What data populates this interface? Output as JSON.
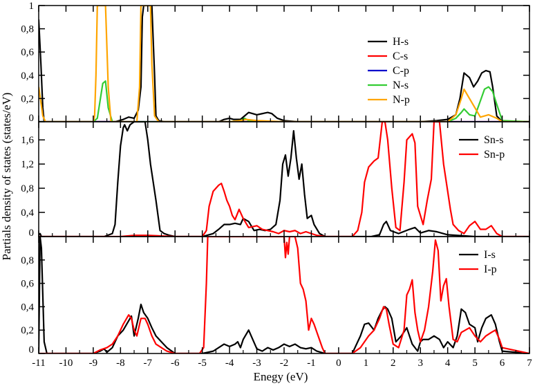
{
  "figure": {
    "ylabel": "Partials density of states (states/eV)",
    "xlabel": "Enegy (eV)"
  },
  "chart_data": [
    {
      "type": "line",
      "panel": "top",
      "xlim": [
        -11,
        7
      ],
      "ylim": [
        0,
        1
      ],
      "yticks": [
        "0",
        "0,2",
        "0,4",
        "0,6",
        "0,8",
        "1"
      ],
      "ytick_values": [
        0,
        0.2,
        0.4,
        0.6,
        0.8,
        1.0
      ],
      "legend_position": "top-right",
      "series": [
        {
          "name": "H-s",
          "color": "#000000",
          "x": [
            -11.0,
            -10.92,
            -10.85,
            -10.8,
            -10.5,
            -8.2,
            -7.9,
            -7.7,
            -7.5,
            -7.35,
            -7.25,
            -7.2,
            -7.15,
            -6.95,
            -6.85,
            -6.75,
            -6.7,
            -6.6,
            -6.4,
            -5.5,
            -4.4,
            -4.2,
            -4.0,
            -3.85,
            -3.6,
            -3.45,
            -3.3,
            -3.0,
            -2.8,
            -2.6,
            -2.45,
            -2.25,
            -2.0,
            -1.5,
            0.0,
            3.0,
            3.6,
            4.0,
            4.3,
            4.45,
            4.6,
            4.8,
            4.95,
            5.1,
            5.25,
            5.4,
            5.55,
            5.65,
            5.8,
            6.0,
            7.0
          ],
          "y": [
            0.88,
            0.5,
            0.12,
            0.0,
            0.0,
            0.0,
            0.02,
            0.04,
            0.03,
            0.1,
            0.3,
            0.9,
            1.0,
            1.0,
            1.0,
            0.4,
            0.05,
            0.01,
            0.0,
            0.0,
            0.0,
            0.02,
            0.03,
            0.02,
            0.02,
            0.05,
            0.08,
            0.06,
            0.07,
            0.08,
            0.07,
            0.03,
            0.01,
            0.0,
            0.0,
            0.0,
            0.01,
            0.02,
            0.06,
            0.2,
            0.42,
            0.38,
            0.3,
            0.35,
            0.42,
            0.44,
            0.43,
            0.3,
            0.05,
            0.0,
            0.0
          ]
        },
        {
          "name": "C-s",
          "color": "#ff0000",
          "x": [
            -11,
            7
          ],
          "y": [
            0,
            0
          ]
        },
        {
          "name": "C-p",
          "color": "#0000cc",
          "x": [
            -11,
            7
          ],
          "y": [
            0,
            0
          ]
        },
        {
          "name": "N-s",
          "color": "#33cc33",
          "x": [
            -11.0,
            -9.0,
            -8.85,
            -8.75,
            -8.65,
            -8.55,
            -8.45,
            -8.3,
            -8.0,
            -4.0,
            -3.6,
            -3.45,
            -3.3,
            -3.0,
            -2.0,
            4.0,
            4.3,
            4.5,
            4.6,
            4.8,
            5.0,
            5.2,
            5.35,
            5.5,
            5.65,
            5.8,
            6.0,
            7.0
          ],
          "y": [
            0.0,
            0.0,
            0.03,
            0.18,
            0.33,
            0.35,
            0.12,
            0.0,
            0.0,
            0.0,
            0.01,
            0.03,
            0.01,
            0.0,
            0.0,
            0.0,
            0.03,
            0.08,
            0.11,
            0.06,
            0.05,
            0.18,
            0.28,
            0.3,
            0.26,
            0.15,
            0.01,
            0.0
          ]
        },
        {
          "name": "N-p",
          "color": "#ffa500",
          "x": [
            -11.0,
            -10.95,
            -10.85,
            -10.75,
            -9.0,
            -8.95,
            -8.9,
            -8.85,
            -8.8,
            -8.6,
            -8.55,
            -8.45,
            -8.35,
            -7.4,
            -7.3,
            -7.25,
            -7.15,
            -6.95,
            -6.9,
            -6.85,
            -6.75,
            -6.6,
            -4.0,
            -3.6,
            -3.4,
            -3.0,
            -2.0,
            4.0,
            4.3,
            4.5,
            4.6,
            4.8,
            5.0,
            5.2,
            5.5,
            5.8,
            6.0,
            7.0
          ],
          "y": [
            0.3,
            0.22,
            0.05,
            0.0,
            0.0,
            0.05,
            0.4,
            1.0,
            1.0,
            1.0,
            1.0,
            0.3,
            0.0,
            0.0,
            0.3,
            1.0,
            1.0,
            1.0,
            1.0,
            0.5,
            0.05,
            0.0,
            0.0,
            0.01,
            0.02,
            0.01,
            0.0,
            0.0,
            0.06,
            0.2,
            0.28,
            0.2,
            0.12,
            0.04,
            0.06,
            0.03,
            0.0,
            0.0
          ]
        }
      ]
    },
    {
      "type": "line",
      "panel": "middle",
      "xlim": [
        -11,
        7
      ],
      "ylim": [
        0,
        1.9
      ],
      "yticks": [
        "0",
        "0,4",
        "0,8",
        "1,2",
        "1,6"
      ],
      "ytick_values": [
        0,
        0.4,
        0.8,
        1.2,
        1.6
      ],
      "legend_position": "top-right",
      "series": [
        {
          "name": "Sn-s",
          "color": "#000000",
          "x": [
            -11.0,
            -10.95,
            -10.9,
            -8.6,
            -8.3,
            -8.2,
            -8.1,
            -8.0,
            -7.9,
            -7.85,
            -7.75,
            -7.65,
            -7.5,
            -7.3,
            -7.2,
            -7.1,
            -7.0,
            -6.9,
            -6.8,
            -6.7,
            -6.55,
            -6.4,
            -6.2,
            -6.0,
            -5.0,
            -4.6,
            -4.4,
            -4.2,
            -4.0,
            -3.8,
            -3.6,
            -3.5,
            -3.3,
            -3.1,
            -2.9,
            -2.7,
            -2.5,
            -2.3,
            -2.15,
            -2.05,
            -1.95,
            -1.85,
            -1.75,
            -1.65,
            -1.55,
            -1.45,
            -1.35,
            -1.25,
            -1.15,
            -1.0,
            -0.9,
            -0.7,
            -0.5,
            0.5,
            1.2,
            1.5,
            1.65,
            1.75,
            1.9,
            2.2,
            2.6,
            2.8,
            3.0,
            3.3,
            3.6,
            4.0,
            5.0,
            7.0
          ],
          "y": [
            0.02,
            0.05,
            0.0,
            0.0,
            0.05,
            0.2,
            0.9,
            1.5,
            1.8,
            1.85,
            1.75,
            1.85,
            1.95,
            1.95,
            1.95,
            1.95,
            1.6,
            1.2,
            0.9,
            0.6,
            0.1,
            0.05,
            0.02,
            0.0,
            0.0,
            0.05,
            0.12,
            0.2,
            0.2,
            0.22,
            0.2,
            0.3,
            0.25,
            0.1,
            0.12,
            0.1,
            0.12,
            0.2,
            0.6,
            1.2,
            1.35,
            1.0,
            1.3,
            1.75,
            1.3,
            0.95,
            1.2,
            0.7,
            0.3,
            0.35,
            0.2,
            0.05,
            0.0,
            0.0,
            0.0,
            0.03,
            0.2,
            0.25,
            0.1,
            0.05,
            0.12,
            0.15,
            0.06,
            0.1,
            0.08,
            0.03,
            0.0,
            0.0
          ]
        },
        {
          "name": "Sn-p",
          "color": "#ff0000",
          "x": [
            -11.0,
            -8.0,
            -7.5,
            -7.0,
            -6.0,
            -5.0,
            -4.85,
            -4.75,
            -4.6,
            -4.5,
            -4.4,
            -4.3,
            -4.2,
            -4.1,
            -4.0,
            -3.9,
            -3.8,
            -3.65,
            -3.5,
            -3.3,
            -3.0,
            -2.8,
            -2.6,
            -2.4,
            -2.2,
            -2.0,
            -1.8,
            -1.6,
            -1.4,
            -1.2,
            -1.0,
            -0.8,
            -0.5,
            0.5,
            0.7,
            0.85,
            0.95,
            1.1,
            1.3,
            1.45,
            1.6,
            1.7,
            1.8,
            1.95,
            2.1,
            2.25,
            2.4,
            2.5,
            2.6,
            2.7,
            2.8,
            2.9,
            3.1,
            3.25,
            3.4,
            3.5,
            3.6,
            3.7,
            3.85,
            4.0,
            4.1,
            4.2,
            4.4,
            4.6,
            4.8,
            5.0,
            5.2,
            5.4,
            5.6,
            5.8,
            6.0,
            7.0
          ],
          "y": [
            0.0,
            0.0,
            0.02,
            0.02,
            0.0,
            0.0,
            0.1,
            0.5,
            0.75,
            0.8,
            0.85,
            0.88,
            0.75,
            0.6,
            0.5,
            0.35,
            0.28,
            0.45,
            0.3,
            0.15,
            0.18,
            0.12,
            0.1,
            0.08,
            0.05,
            0.1,
            0.08,
            0.1,
            0.05,
            0.08,
            0.05,
            0.02,
            0.0,
            0.0,
            0.1,
            0.4,
            0.9,
            1.15,
            1.25,
            1.3,
            1.95,
            2.0,
            1.6,
            0.8,
            0.15,
            0.1,
            0.9,
            1.6,
            1.65,
            1.7,
            1.55,
            0.5,
            0.2,
            0.6,
            0.95,
            1.95,
            1.95,
            1.95,
            1.2,
            0.75,
            0.45,
            0.2,
            0.1,
            0.05,
            0.18,
            0.25,
            0.12,
            0.12,
            0.18,
            0.05,
            0.0,
            0.0
          ]
        }
      ]
    },
    {
      "type": "line",
      "panel": "bottom",
      "xlim": [
        -11,
        7
      ],
      "ylim": [
        0,
        1
      ],
      "yticks": [
        "0",
        "0,2",
        "0,4",
        "0,6",
        "0,8"
      ],
      "ytick_values": [
        0,
        0.2,
        0.4,
        0.6,
        0.8
      ],
      "legend_position": "top-right",
      "series": [
        {
          "name": "I-s",
          "color": "#000000",
          "x": [
            -11.0,
            -10.95,
            -10.9,
            -10.8,
            -10.7,
            -10.5,
            -9.0,
            -8.75,
            -8.6,
            -8.5,
            -8.3,
            -8.1,
            -7.9,
            -7.7,
            -7.6,
            -7.5,
            -7.35,
            -7.25,
            -7.15,
            -7.0,
            -6.85,
            -6.7,
            -6.5,
            -6.3,
            -6.0,
            -5.0,
            -4.6,
            -4.4,
            -4.2,
            -4.0,
            -3.8,
            -3.7,
            -3.6,
            -3.5,
            -3.3,
            -3.0,
            -2.8,
            -2.6,
            -2.4,
            -2.2,
            -2.0,
            -1.8,
            -1.6,
            -1.4,
            -1.2,
            -1.0,
            -0.8,
            -0.5,
            0.5,
            0.8,
            0.95,
            1.1,
            1.3,
            1.45,
            1.6,
            1.7,
            1.8,
            1.95,
            2.1,
            2.3,
            2.5,
            2.7,
            2.9,
            3.0,
            3.1,
            3.3,
            3.5,
            3.7,
            3.85,
            4.0,
            4.2,
            4.35,
            4.5,
            4.65,
            4.8,
            5.0,
            5.1,
            5.25,
            5.4,
            5.6,
            5.75,
            5.9,
            6.0,
            7.0
          ],
          "y": [
            0.0,
            1.0,
            0.9,
            0.1,
            0.0,
            0.0,
            0.0,
            0.02,
            0.04,
            0.01,
            0.05,
            0.15,
            0.2,
            0.28,
            0.32,
            0.15,
            0.3,
            0.42,
            0.35,
            0.3,
            0.22,
            0.15,
            0.1,
            0.05,
            0.0,
            0.0,
            0.02,
            0.05,
            0.08,
            0.06,
            0.08,
            0.1,
            0.05,
            0.12,
            0.2,
            0.04,
            0.02,
            0.05,
            0.03,
            0.05,
            0.08,
            0.06,
            0.08,
            0.05,
            0.04,
            0.05,
            0.02,
            0.0,
            0.0,
            0.15,
            0.25,
            0.26,
            0.2,
            0.3,
            0.37,
            0.4,
            0.38,
            0.3,
            0.1,
            0.15,
            0.22,
            0.08,
            0.02,
            0.1,
            0.12,
            0.12,
            0.15,
            0.12,
            0.05,
            0.1,
            0.05,
            0.15,
            0.38,
            0.35,
            0.25,
            0.22,
            0.1,
            0.22,
            0.3,
            0.33,
            0.25,
            0.1,
            0.02,
            0.0
          ]
        },
        {
          "name": "I-p",
          "color": "#ff0000",
          "x": [
            -11.0,
            -9.0,
            -8.75,
            -8.5,
            -8.3,
            -8.1,
            -7.9,
            -7.7,
            -7.6,
            -7.5,
            -7.4,
            -7.25,
            -7.1,
            -7.0,
            -6.85,
            -6.7,
            -6.5,
            -6.3,
            -6.0,
            -5.1,
            -4.95,
            -4.85,
            -4.8,
            -4.7,
            -4.5,
            -4.3,
            -4.1,
            -3.9,
            -3.7,
            -3.5,
            -3.3,
            -3.1,
            -2.9,
            -2.7,
            -2.5,
            -2.3,
            -2.1,
            -2.0,
            -1.95,
            -1.9,
            -1.85,
            -1.8,
            -1.75,
            -1.7,
            -1.65,
            -1.6,
            -1.5,
            -1.4,
            -1.3,
            -1.2,
            -1.1,
            -1.0,
            -0.9,
            -0.75,
            -0.6,
            -0.5,
            0.5,
            0.8,
            1.1,
            1.3,
            1.5,
            1.65,
            1.75,
            1.85,
            2.0,
            2.2,
            2.4,
            2.5,
            2.6,
            2.7,
            2.8,
            2.9,
            3.0,
            3.15,
            3.3,
            3.45,
            3.55,
            3.65,
            3.75,
            3.85,
            3.95,
            4.05,
            4.2,
            4.35,
            4.5,
            4.65,
            4.8,
            5.0,
            5.2,
            5.4,
            5.6,
            5.75,
            5.9,
            6.0,
            7.0
          ],
          "y": [
            0.0,
            0.0,
            0.03,
            0.05,
            0.08,
            0.15,
            0.25,
            0.33,
            0.3,
            0.2,
            0.15,
            0.3,
            0.3,
            0.25,
            0.15,
            0.08,
            0.05,
            0.02,
            0.0,
            0.0,
            0.05,
            0.6,
            1.0,
            1.0,
            1.0,
            1.0,
            1.0,
            1.0,
            1.0,
            1.0,
            1.0,
            1.0,
            1.0,
            1.0,
            1.0,
            1.0,
            1.0,
            1.0,
            0.82,
            0.95,
            0.85,
            1.0,
            1.0,
            1.0,
            1.0,
            1.0,
            0.9,
            0.6,
            0.55,
            0.45,
            0.2,
            0.3,
            0.25,
            0.15,
            0.05,
            0.0,
            0.0,
            0.05,
            0.15,
            0.2,
            0.3,
            0.4,
            0.38,
            0.25,
            0.08,
            0.05,
            0.2,
            0.5,
            0.55,
            0.63,
            0.35,
            0.2,
            0.1,
            0.2,
            0.4,
            0.7,
            0.97,
            0.88,
            0.45,
            0.58,
            0.64,
            0.4,
            0.12,
            0.1,
            0.18,
            0.2,
            0.22,
            0.15,
            0.1,
            0.15,
            0.18,
            0.2,
            0.12,
            0.05,
            0.0
          ]
        }
      ]
    }
  ],
  "x_axis": {
    "ticks": [
      "-11",
      "-10",
      "-9",
      "-8",
      "-7",
      "-6",
      "-5",
      "-4",
      "-3",
      "-2",
      "-1",
      "0",
      "1",
      "2",
      "3",
      "4",
      "5",
      "6",
      "7"
    ],
    "tick_values": [
      -11,
      -10,
      -9,
      -8,
      -7,
      -6,
      -5,
      -4,
      -3,
      -2,
      -1,
      0,
      1,
      2,
      3,
      4,
      5,
      6,
      7
    ]
  }
}
